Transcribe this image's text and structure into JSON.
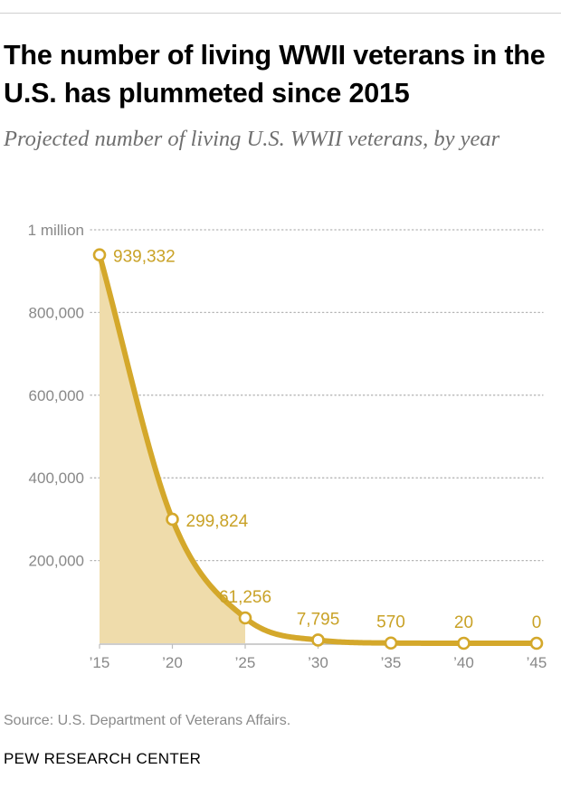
{
  "header": {
    "title": "The number of living WWII veterans in the U.S. has plummeted since 2015",
    "subtitle": "Projected number of living U.S. WWII veterans, by year"
  },
  "chart_data": {
    "type": "area",
    "title": "The number of living WWII veterans in the U.S. has plummeted since 2015",
    "subtitle": "Projected number of living U.S. WWII veterans, by year",
    "xlabel": "",
    "ylabel": "",
    "categories": [
      "’15",
      "’20",
      "’25",
      "’30",
      "’35",
      "’40",
      "’45"
    ],
    "x": [
      2015,
      2020,
      2025,
      2030,
      2035,
      2040,
      2045
    ],
    "values": [
      939332,
      299824,
      61256,
      7795,
      570,
      20,
      0
    ],
    "data_labels": [
      "939,332",
      "299,824",
      "61,256",
      "7,795",
      "570",
      "20",
      "0"
    ],
    "yticks": [
      200000,
      400000,
      600000,
      800000,
      1000000
    ],
    "ytick_labels": [
      "200,000",
      "400,000",
      "600,000",
      "800,000",
      "1 million"
    ],
    "ylim": [
      0,
      1000000
    ],
    "grid": true,
    "shaded_range": [
      2015,
      2025
    ],
    "colors": {
      "line": "#d4a82b",
      "fill": "#efdcab",
      "label": "#c9a227",
      "axis_text": "#888888",
      "grid": "#b5b5b5"
    }
  },
  "footer": {
    "source": "Source: U.S. Department of Veterans Affairs.",
    "brand": "PEW RESEARCH CENTER"
  }
}
